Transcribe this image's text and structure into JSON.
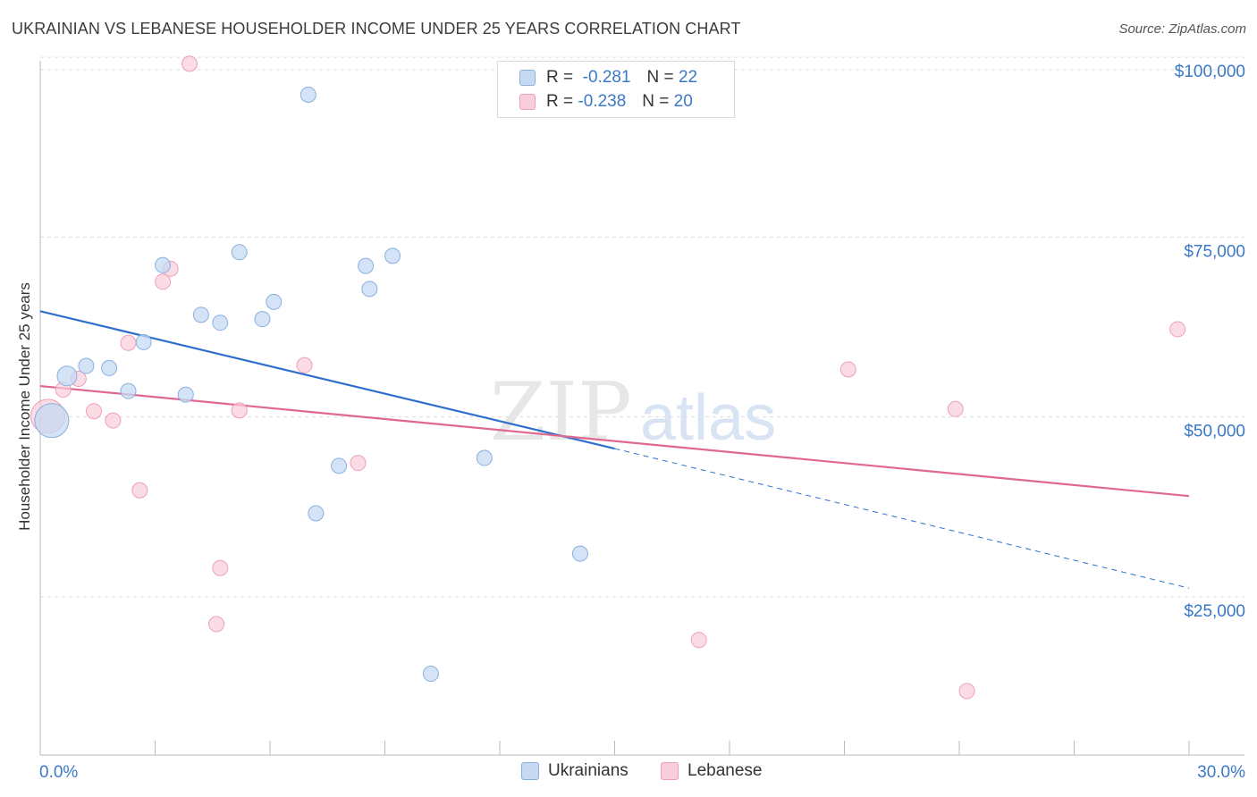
{
  "header": {
    "title": "UKRAINIAN VS LEBANESE HOUSEHOLDER INCOME UNDER 25 YEARS CORRELATION CHART",
    "source": "Source: ZipAtlas.com"
  },
  "watermark": {
    "zip": "ZIP",
    "atlas": "atlas"
  },
  "stats_legend": [
    {
      "series": "Ukrainians",
      "r_label": "R =",
      "r_value": "-0.281",
      "n_label": "N =",
      "n_value": "22"
    },
    {
      "series": "Lebanese",
      "r_label": "R =",
      "r_value": "-0.238",
      "n_label": "N =",
      "n_value": "20"
    }
  ],
  "colors": {
    "ukrainians_fill": "#c5d9f3",
    "ukrainians_stroke": "#8ab0e0",
    "ukrainians_line": "#2e6fce",
    "lebanese_fill": "#f9cdd9",
    "lebanese_stroke": "#eda0b8",
    "lebanese_line": "#e0678f",
    "tick_label": "#3a78c8",
    "grid": "#dcdcdc"
  },
  "chart_data": {
    "type": "scatter",
    "title": "UKRAINIAN VS LEBANESE HOUSEHOLDER INCOME UNDER 25 YEARS CORRELATION CHART",
    "xlabel": "",
    "ylabel": "Householder Income Under 25 years",
    "xlim": [
      0,
      30
    ],
    "ylim": [
      3000,
      103000
    ],
    "x_tick_labels": [
      "0.0%",
      "30.0%"
    ],
    "y_ticks": [
      25000,
      50000,
      75000,
      100000
    ],
    "y_tick_labels": [
      "$25,000",
      "$50,000",
      "$75,000",
      "$100,000"
    ],
    "grid": true,
    "legend_position": "bottom-center",
    "series": [
      {
        "name": "Ukrainians",
        "points": [
          {
            "x": 0.3,
            "y": 49500,
            "size": "large"
          },
          {
            "x": 0.7,
            "y": 55700,
            "size": "medium"
          },
          {
            "x": 1.2,
            "y": 57100
          },
          {
            "x": 1.8,
            "y": 56800
          },
          {
            "x": 2.3,
            "y": 53600
          },
          {
            "x": 2.7,
            "y": 60400
          },
          {
            "x": 3.2,
            "y": 71100
          },
          {
            "x": 3.8,
            "y": 53100
          },
          {
            "x": 4.2,
            "y": 64200
          },
          {
            "x": 4.7,
            "y": 63100
          },
          {
            "x": 5.2,
            "y": 72900
          },
          {
            "x": 5.8,
            "y": 63600
          },
          {
            "x": 6.1,
            "y": 66000
          },
          {
            "x": 7.0,
            "y": 94800
          },
          {
            "x": 7.2,
            "y": 36600
          },
          {
            "x": 7.8,
            "y": 43200
          },
          {
            "x": 8.5,
            "y": 71000
          },
          {
            "x": 8.6,
            "y": 67800
          },
          {
            "x": 9.2,
            "y": 72400
          },
          {
            "x": 10.2,
            "y": 14300
          },
          {
            "x": 11.6,
            "y": 44300
          },
          {
            "x": 14.1,
            "y": 31000
          }
        ],
        "trend": {
          "x0": 0,
          "y0": 64700,
          "x1": 15,
          "y1": 45600,
          "dashed_to_x": 30,
          "dashed_to_y": 26200
        }
      },
      {
        "name": "Lebanese",
        "points": [
          {
            "x": 0.2,
            "y": 50100,
            "size": "large"
          },
          {
            "x": 0.6,
            "y": 53800
          },
          {
            "x": 1.0,
            "y": 55300
          },
          {
            "x": 1.4,
            "y": 50800
          },
          {
            "x": 1.9,
            "y": 49500
          },
          {
            "x": 2.3,
            "y": 60300
          },
          {
            "x": 2.6,
            "y": 39800
          },
          {
            "x": 3.2,
            "y": 68800
          },
          {
            "x": 3.4,
            "y": 70600
          },
          {
            "x": 4.6,
            "y": 21200
          },
          {
            "x": 4.7,
            "y": 29000
          },
          {
            "x": 5.2,
            "y": 50900
          },
          {
            "x": 6.9,
            "y": 57200
          },
          {
            "x": 3.9,
            "y": 99100
          },
          {
            "x": 8.3,
            "y": 43600
          },
          {
            "x": 17.2,
            "y": 19000
          },
          {
            "x": 21.1,
            "y": 56600
          },
          {
            "x": 23.9,
            "y": 51100
          },
          {
            "x": 24.2,
            "y": 11900
          },
          {
            "x": 29.7,
            "y": 62200
          }
        ],
        "trend": {
          "x0": 0,
          "y0": 54300,
          "x1": 30,
          "y1": 39000
        }
      }
    ]
  },
  "bottom_legend": [
    {
      "label": "Ukrainians"
    },
    {
      "label": "Lebanese"
    }
  ]
}
